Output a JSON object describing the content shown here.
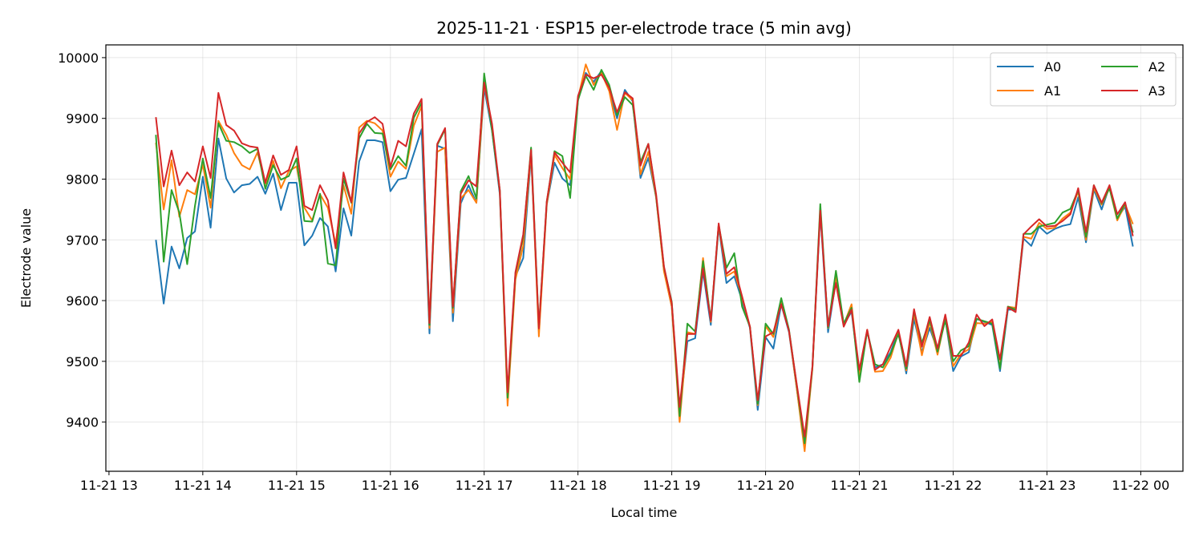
{
  "chart_data": {
    "type": "line",
    "title": "2025-11-21 · ESP15 per-electrode trace (5 min avg)",
    "xlabel": "Local time",
    "ylabel": "Electrode value",
    "xlim": [
      "2025-11-21 12:58",
      "2025-11-22 00:27"
    ],
    "ylim": [
      9319,
      10021
    ],
    "grid": true,
    "legend": {
      "placement": "top-right",
      "columns": 2
    },
    "x_ticks": [
      {
        "t": "2025-11-21 13:00",
        "label": "11-21 13"
      },
      {
        "t": "2025-11-21 14:00",
        "label": "11-21 14"
      },
      {
        "t": "2025-11-21 15:00",
        "label": "11-21 15"
      },
      {
        "t": "2025-11-21 16:00",
        "label": "11-21 16"
      },
      {
        "t": "2025-11-21 17:00",
        "label": "11-21 17"
      },
      {
        "t": "2025-11-21 18:00",
        "label": "11-21 18"
      },
      {
        "t": "2025-11-21 19:00",
        "label": "11-21 19"
      },
      {
        "t": "2025-11-21 20:00",
        "label": "11-21 20"
      },
      {
        "t": "2025-11-21 21:00",
        "label": "11-21 21"
      },
      {
        "t": "2025-11-21 22:00",
        "label": "11-21 22"
      },
      {
        "t": "2025-11-21 23:00",
        "label": "11-21 23"
      },
      {
        "t": "2025-11-22 00:00",
        "label": "11-22 00"
      }
    ],
    "y_ticks": [
      9400,
      9500,
      9600,
      9700,
      9800,
      9900,
      10000
    ],
    "x": [
      "13:30",
      "13:35",
      "13:40",
      "13:45",
      "13:50",
      "13:55",
      "14:00",
      "14:05",
      "14:10",
      "14:15",
      "14:20",
      "14:25",
      "14:30",
      "14:35",
      "14:40",
      "14:45",
      "14:50",
      "14:55",
      "15:00",
      "15:05",
      "15:10",
      "15:15",
      "15:20",
      "15:25",
      "15:30",
      "15:35",
      "15:40",
      "15:45",
      "15:50",
      "15:55",
      "16:00",
      "16:05",
      "16:10",
      "16:15",
      "16:20",
      "16:25",
      "16:30",
      "16:35",
      "16:40",
      "16:45",
      "16:50",
      "16:55",
      "17:00",
      "17:05",
      "17:10",
      "17:15",
      "17:20",
      "17:25",
      "17:30",
      "17:35",
      "17:40",
      "17:45",
      "17:50",
      "17:55",
      "18:00",
      "18:05",
      "18:10",
      "18:15",
      "18:20",
      "18:25",
      "18:30",
      "18:35",
      "18:40",
      "18:45",
      "18:50",
      "18:55",
      "19:00",
      "19:05",
      "19:10",
      "19:15",
      "19:20",
      "19:25",
      "19:30",
      "19:35",
      "19:40",
      "19:45",
      "19:50",
      "19:55",
      "20:00",
      "20:05",
      "20:10",
      "20:15",
      "20:20",
      "20:25",
      "20:30",
      "20:35",
      "20:40",
      "20:45",
      "20:50",
      "20:55",
      "21:00",
      "21:05",
      "21:10",
      "21:15",
      "21:20",
      "21:25",
      "21:30",
      "21:35",
      "21:40",
      "21:45",
      "21:50",
      "21:55",
      "22:00",
      "22:05",
      "22:10",
      "22:15",
      "22:20",
      "22:25",
      "22:30",
      "22:35",
      "22:40",
      "22:45",
      "22:50",
      "22:55",
      "23:00",
      "23:05",
      "23:10",
      "23:15",
      "23:20",
      "23:25",
      "23:30",
      "23:35",
      "23:40",
      "23:45",
      "23:50",
      "23:55"
    ],
    "series": [
      {
        "name": "A0",
        "color": "#1f77b4",
        "values": [
          9700,
          9595,
          9689,
          9653,
          9703,
          9714,
          9804,
          9720,
          9867,
          9801,
          9778,
          9790,
          9792,
          9804,
          9776,
          9809,
          9749,
          9794,
          9794,
          9691,
          9707,
          9736,
          9722,
          9648,
          9752,
          9707,
          9829,
          9864,
          9864,
          9861,
          9780,
          9799,
          9802,
          9842,
          9882,
          9546,
          9855,
          9850,
          9566,
          9760,
          9790,
          9761,
          9950,
          9880,
          9775,
          9440,
          9640,
          9670,
          9840,
          9550,
          9758,
          9827,
          9801,
          9790,
          9930,
          9975,
          9960,
          9978,
          9947,
          9900,
          9947,
          9928,
          9802,
          9835,
          9770,
          9650,
          9590,
          9415,
          9533,
          9538,
          9648,
          9560,
          9722,
          9629,
          9640,
          9600,
          9555,
          9420,
          9540,
          9521,
          9594,
          9548,
          9455,
          9360,
          9490,
          9745,
          9548,
          9634,
          9560,
          9582,
          9478,
          9550,
          9490,
          9495,
          9515,
          9550,
          9480,
          9570,
          9515,
          9555,
          9518,
          9570,
          9484,
          9508,
          9515,
          9570,
          9565,
          9560,
          9484,
          9585,
          9585,
          9702,
          9690,
          9722,
          9710,
          9718,
          9723,
          9726,
          9770,
          9696,
          9783,
          9750,
          9788,
          9735,
          9755,
          9689
        ]
      },
      {
        "name": "A1",
        "color": "#ff7f0e",
        "values": [
          9860,
          9750,
          9831,
          9738,
          9782,
          9775,
          9824,
          9753,
          9896,
          9873,
          9843,
          9823,
          9816,
          9844,
          9792,
          9830,
          9785,
          9813,
          9821,
          9753,
          9732,
          9775,
          9753,
          9693,
          9790,
          9743,
          9885,
          9896,
          9892,
          9880,
          9804,
          9829,
          9817,
          9888,
          9920,
          9555,
          9845,
          9852,
          9580,
          9768,
          9782,
          9761,
          9958,
          9885,
          9780,
          9427,
          9635,
          9690,
          9845,
          9541,
          9758,
          9840,
          9818,
          9800,
          9933,
          9989,
          9955,
          9975,
          9945,
          9881,
          9942,
          9930,
          9808,
          9845,
          9770,
          9648,
          9590,
          9400,
          9548,
          9545,
          9670,
          9565,
          9725,
          9640,
          9648,
          9605,
          9557,
          9428,
          9558,
          9540,
          9598,
          9550,
          9455,
          9352,
          9488,
          9752,
          9555,
          9640,
          9560,
          9594,
          9475,
          9552,
          9483,
          9484,
          9506,
          9548,
          9485,
          9580,
          9510,
          9565,
          9511,
          9572,
          9492,
          9512,
          9520,
          9563,
          9562,
          9565,
          9490,
          9590,
          9588,
          9705,
          9702,
          9728,
          9718,
          9720,
          9735,
          9745,
          9780,
          9700,
          9786,
          9758,
          9785,
          9732,
          9758,
          9726
        ]
      },
      {
        "name": "A2",
        "color": "#2ca02c",
        "values": [
          9873,
          9664,
          9782,
          9745,
          9660,
          9756,
          9834,
          9769,
          9892,
          9863,
          9861,
          9854,
          9843,
          9850,
          9784,
          9823,
          9799,
          9805,
          9834,
          9731,
          9730,
          9776,
          9661,
          9658,
          9801,
          9761,
          9867,
          9891,
          9876,
          9875,
          9816,
          9838,
          9822,
          9901,
          9926,
          9560,
          9856,
          9882,
          9588,
          9780,
          9805,
          9768,
          9974,
          9880,
          9782,
          9440,
          9645,
          9705,
          9852,
          9556,
          9762,
          9846,
          9838,
          9769,
          9930,
          9970,
          9947,
          9980,
          9955,
          9905,
          9935,
          9922,
          9828,
          9858,
          9772,
          9655,
          9598,
          9410,
          9562,
          9549,
          9665,
          9568,
          9725,
          9654,
          9678,
          9590,
          9557,
          9430,
          9562,
          9545,
          9604,
          9552,
          9460,
          9365,
          9490,
          9759,
          9556,
          9649,
          9562,
          9588,
          9466,
          9550,
          9495,
          9490,
          9512,
          9545,
          9488,
          9583,
          9530,
          9568,
          9516,
          9568,
          9500,
          9518,
          9525,
          9570,
          9566,
          9562,
          9488,
          9590,
          9585,
          9710,
          9710,
          9722,
          9725,
          9728,
          9745,
          9751,
          9782,
          9705,
          9790,
          9760,
          9785,
          9735,
          9760,
          9712
        ]
      },
      {
        "name": "A3",
        "color": "#d62728",
        "values": [
          9902,
          9788,
          9847,
          9790,
          9811,
          9796,
          9854,
          9802,
          9942,
          9889,
          9880,
          9859,
          9854,
          9852,
          9794,
          9839,
          9807,
          9815,
          9854,
          9756,
          9749,
          9790,
          9765,
          9686,
          9811,
          9762,
          9875,
          9894,
          9902,
          9891,
          9820,
          9863,
          9854,
          9908,
          9932,
          9563,
          9858,
          9884,
          9590,
          9776,
          9798,
          9788,
          9959,
          9891,
          9782,
          9449,
          9647,
          9709,
          9848,
          9554,
          9763,
          9844,
          9827,
          9811,
          9937,
          9972,
          9966,
          9972,
          9950,
          9910,
          9943,
          9933,
          9822,
          9858,
          9775,
          9656,
          9596,
          9425,
          9545,
          9545,
          9653,
          9567,
          9727,
          9644,
          9655,
          9607,
          9557,
          9436,
          9541,
          9548,
          9594,
          9550,
          9462,
          9376,
          9492,
          9748,
          9558,
          9629,
          9557,
          9585,
          9486,
          9552,
          9486,
          9495,
          9524,
          9552,
          9492,
          9586,
          9524,
          9573,
          9521,
          9577,
          9509,
          9509,
          9531,
          9577,
          9558,
          9569,
          9503,
          9589,
          9581,
          9709,
          9722,
          9734,
          9722,
          9723,
          9731,
          9742,
          9785,
          9713,
          9790,
          9761,
          9790,
          9742,
          9762,
          9706
        ]
      }
    ]
  }
}
